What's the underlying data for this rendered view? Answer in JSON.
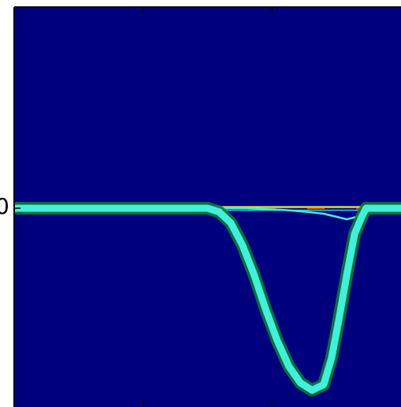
{
  "chart_data": {
    "type": "heatmap",
    "title": "",
    "xlabel": "",
    "ylabel": "",
    "y_tick_labels": [
      "0"
    ],
    "xlim": [
      0,
      1
    ],
    "ylim": [
      -1,
      1
    ],
    "colormap": "jet",
    "colors": {
      "background": "#00007f",
      "trace_main": "#40f0d8",
      "trace_halo": "#0a7a3a",
      "baseline_yellow": "#d8e030",
      "baseline_red": "#e04020",
      "baseline_cyan": "#30d0e0"
    },
    "series": [
      {
        "x": [
          0.0,
          0.5,
          0.53,
          0.56,
          0.59,
          0.62,
          0.65,
          0.68,
          0.71,
          0.74,
          0.77,
          0.8,
          0.82,
          0.84,
          0.86,
          0.88,
          0.9,
          0.91,
          0.92,
          1.0
        ],
        "y": [
          0.0,
          0.0,
          -0.02,
          -0.08,
          -0.2,
          -0.36,
          -0.55,
          -0.72,
          -0.86,
          -0.95,
          -0.99,
          -0.96,
          -0.82,
          -0.6,
          -0.36,
          -0.14,
          -0.04,
          0.0,
          0.0,
          0.0
        ]
      },
      {
        "x": [
          0.0,
          0.5,
          0.6,
          0.7,
          0.76,
          0.8,
          0.84,
          0.86,
          0.88,
          0.9,
          0.92,
          1.0
        ],
        "y": [
          0.0,
          0.0,
          0.0,
          -0.01,
          -0.02,
          -0.03,
          -0.05,
          -0.06,
          -0.05,
          -0.03,
          0.0,
          0.0
        ]
      },
      {
        "x": [
          0.0,
          1.0
        ],
        "y": [
          0.0,
          0.0
        ]
      }
    ]
  }
}
